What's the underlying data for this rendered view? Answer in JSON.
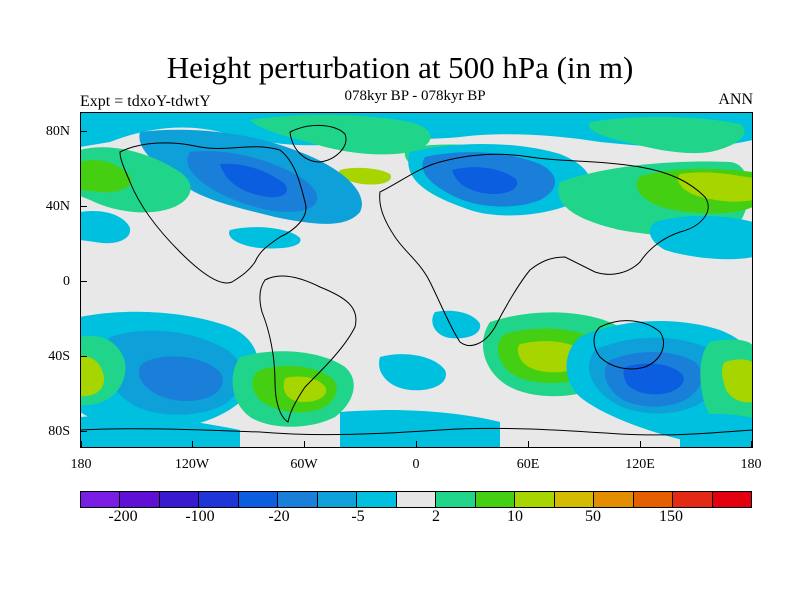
{
  "title": "Height perturbation at 500 hPa (in m)",
  "subtitle": "078kyr BP - 078kyr BP",
  "left_label": "Expt = tdxoY-tdwtY",
  "right_label": "ANN",
  "y_axis": {
    "ticks": [
      "80N",
      "40N",
      "0",
      "40S",
      "80S"
    ]
  },
  "x_axis": {
    "ticks": [
      "180",
      "120W",
      "60W",
      "0",
      "60E",
      "120E",
      "180"
    ]
  },
  "colorbar": {
    "colors": [
      "#7a1ee6",
      "#5f0fd6",
      "#3a1ad0",
      "#1e35d8",
      "#0c5ee0",
      "#1a7fd8",
      "#0ea0d8",
      "#00c0e0",
      "#e6e6e6",
      "#20d58a",
      "#44cf12",
      "#a7d500",
      "#d5bb00",
      "#e28e00",
      "#e35f00",
      "#e22a14",
      "#e2000e"
    ],
    "labels": [
      "-200",
      "-100",
      "-20",
      "-5",
      "2",
      "10",
      "50",
      "150"
    ]
  },
  "map_colors": {
    "background": "#e8e8e8",
    "light_blue": "#00c0e0",
    "mid_blue": "#0ea0d8",
    "blue": "#1a7fd8",
    "deep_blue": "#0c5ee0",
    "green": "#20d58a",
    "bright_green": "#44cf12",
    "yellow_green": "#a7d500",
    "coastline": "#000000"
  }
}
